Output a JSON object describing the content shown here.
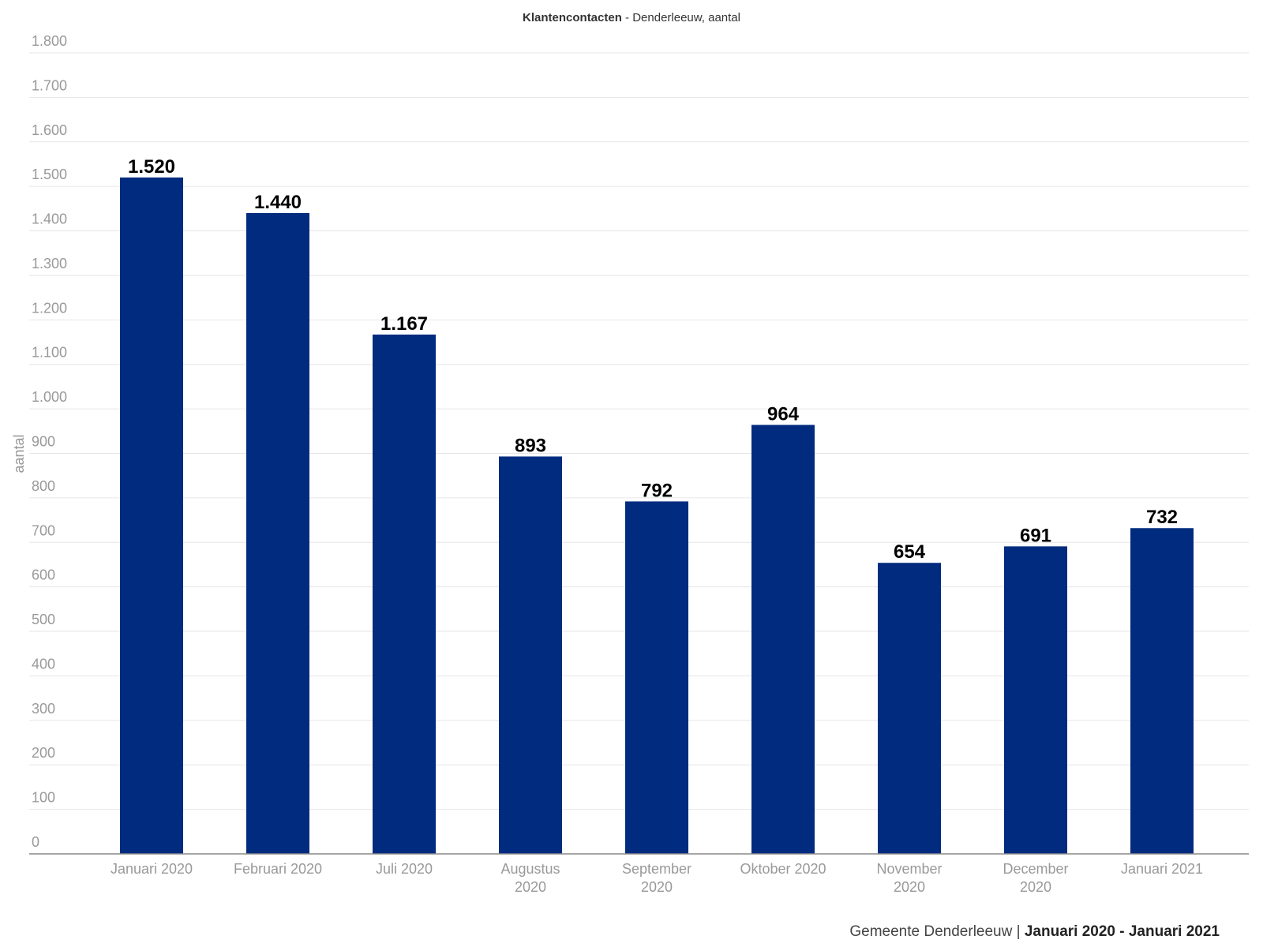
{
  "chart_data": {
    "type": "bar",
    "title": "Klantencontacten",
    "subtitle": "Denderleeuw, aantal",
    "title_separator": " - ",
    "ylabel": "aantal",
    "xlabel": "",
    "categories": [
      "Januari 2020",
      "Februari 2020",
      "Juli 2020",
      "Augustus 2020",
      "September 2020",
      "Oktober 2020",
      "November 2020",
      "December 2020",
      "Januari 2021"
    ],
    "category_lines": [
      [
        "Januari 2020"
      ],
      [
        "Februari 2020"
      ],
      [
        "Juli 2020"
      ],
      [
        "Augustus",
        "2020"
      ],
      [
        "September",
        "2020"
      ],
      [
        "Oktober 2020"
      ],
      [
        "November",
        "2020"
      ],
      [
        "December",
        "2020"
      ],
      [
        "Januari 2021"
      ]
    ],
    "values": [
      1520,
      1440,
      1167,
      893,
      792,
      964,
      654,
      691,
      732
    ],
    "value_labels": [
      "1.520",
      "1.440",
      "1.167",
      "893",
      "792",
      "964",
      "654",
      "691",
      "732"
    ],
    "ylim": [
      0,
      1800
    ],
    "yticks": [
      0,
      100,
      200,
      300,
      400,
      500,
      600,
      700,
      800,
      900,
      1000,
      1100,
      1200,
      1300,
      1400,
      1500,
      1600,
      1700,
      1800
    ],
    "ytick_labels": [
      "0",
      "100",
      "200",
      "300",
      "400",
      "500",
      "600",
      "700",
      "800",
      "900",
      "1.000",
      "1.100",
      "1.200",
      "1.300",
      "1.400",
      "1.500",
      "1.600",
      "1.700",
      "1.800"
    ],
    "grid": true,
    "legend": "none",
    "bar_color": "#002b7f",
    "grid_color": "#e6e6e6",
    "axis_color": "#888888",
    "tick_color": "#999999",
    "label_color": "#000000"
  },
  "footer": {
    "source": "Gemeente Denderleeuw",
    "separator": " | ",
    "period": "Januari 2020 - Januari 2021"
  }
}
